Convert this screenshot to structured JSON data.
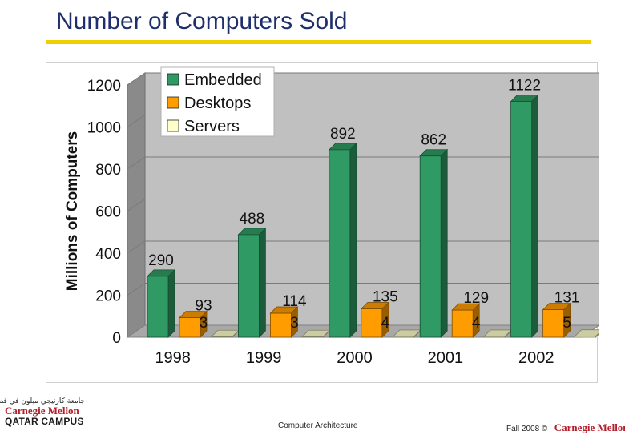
{
  "slide": {
    "title": "Number of Computers Sold",
    "footer_center": "Computer Architecture",
    "footer_date": "Fall 2008 ©",
    "footer_logo": "Carnegie Mellon"
  },
  "logo_left": {
    "arabic": "جامعة كارنيجي ميلون في قطر",
    "name": "Carnegie Mellon",
    "campus": "QATAR CAMPUS"
  },
  "chart_data": {
    "type": "bar",
    "title": "",
    "xlabel": "",
    "ylabel": "Millions of Computers",
    "ylim": [
      0,
      1200
    ],
    "yticks": [
      0,
      200,
      400,
      600,
      800,
      1000,
      1200
    ],
    "categories": [
      "1998",
      "1999",
      "2000",
      "2001",
      "2002"
    ],
    "series": [
      {
        "name": "Embedded",
        "values": [
          290,
          488,
          892,
          862,
          1122
        ],
        "color": "#2f9a63"
      },
      {
        "name": "Desktops",
        "values": [
          93,
          114,
          135,
          129,
          131
        ],
        "color": "#ff9c00"
      },
      {
        "name": "Servers",
        "values": [
          3,
          3,
          4,
          4,
          5
        ],
        "color": "#ffffcc"
      }
    ],
    "legend_position": "top-left",
    "grid": true,
    "style": "3d"
  }
}
